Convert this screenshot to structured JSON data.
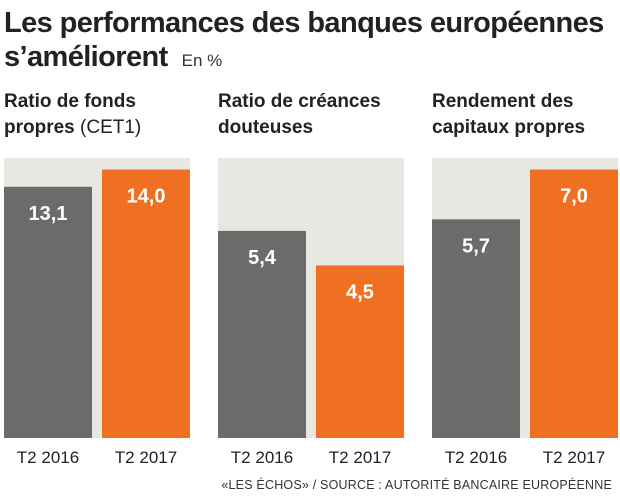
{
  "title": "Les performances des banques européennes s’améliorent",
  "subtitle": "En %",
  "footer": "«LES ÉCHOS» / SOURCE : AUTORITÉ BANCAIRE EUROPÉENNE",
  "colors": {
    "t2_2016": "#6b6b6b",
    "t2_2017": "#f07022",
    "panel_bg": "#e9e7e2"
  },
  "chart_data": [
    {
      "type": "bar",
      "title": "Ratio de fonds propres",
      "title_unit": "(CET1)",
      "categories": [
        "T2 2016",
        "T2 2017"
      ],
      "values": [
        13.1,
        14.0
      ],
      "value_labels": [
        "13,1",
        "14,0"
      ],
      "ylim": [
        0,
        14.6
      ]
    },
    {
      "type": "bar",
      "title": "Ratio de créances douteuses",
      "categories": [
        "T2 2016",
        "T2 2017"
      ],
      "values": [
        5.4,
        4.5
      ],
      "value_labels": [
        "5,4",
        "4,5"
      ],
      "ylim": [
        0,
        7.3
      ]
    },
    {
      "type": "bar",
      "title": "Rendement des capitaux propres",
      "categories": [
        "T2 2016",
        "T2 2017"
      ],
      "values": [
        5.7,
        7.0
      ],
      "value_labels": [
        "5,7",
        "7,0"
      ],
      "ylim": [
        0,
        7.3
      ]
    }
  ]
}
